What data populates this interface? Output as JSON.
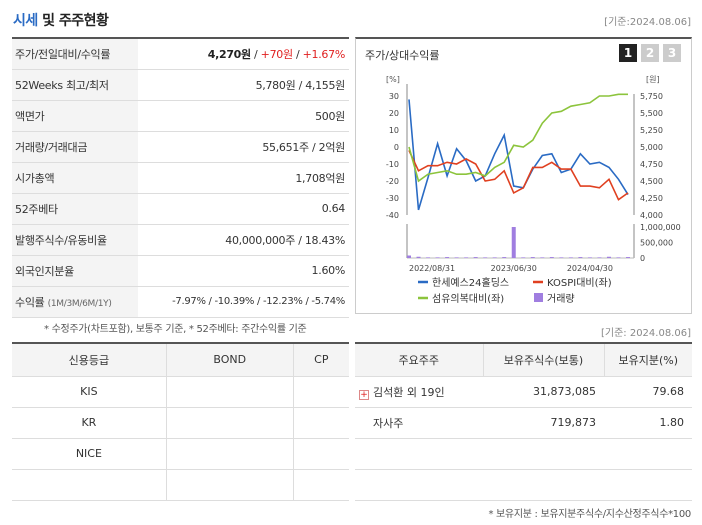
{
  "header": {
    "title_accent": "시세",
    "title_rest": " 및 주주현황",
    "date": "[기준:2024.08.06]"
  },
  "quote": {
    "rows": [
      {
        "label": "주가/전일대비/수익률",
        "price": "4,270원",
        "change": "+70원",
        "rate": "+1.67%"
      },
      {
        "label": "52Weeks 최고/최저",
        "value": "5,780원 / 4,155원"
      },
      {
        "label": "액면가",
        "value": "500원"
      },
      {
        "label": "거래량/거래대금",
        "value": "55,651주 / 2억원"
      },
      {
        "label": "시가총액",
        "value": "1,708억원"
      },
      {
        "label": "52주베타",
        "value": "0.64"
      },
      {
        "label": "발행주식수/유동비율",
        "value": "40,000,000주 / 18.43%"
      },
      {
        "label": "외국인지분율",
        "value": "1.60%"
      },
      {
        "label": "수익률",
        "sub": "(1M/3M/6M/1Y)",
        "value": "-7.97% / -10.39% / -12.23% / -5.74%"
      }
    ]
  },
  "chart_panel": {
    "title": "주가/상대수익률",
    "tabs": [
      "1",
      "2",
      "3"
    ],
    "active_tab": "1"
  },
  "chart_data": {
    "type": "line",
    "left_axis_unit": "[%]",
    "right_axis_unit": "[원]",
    "left_ticks": [
      "30",
      "20",
      "10",
      "0",
      "-10",
      "-20",
      "-30",
      "-40"
    ],
    "left_ylim": [
      -40,
      30
    ],
    "right_ticks": [
      "5,750",
      "5,500",
      "5,250",
      "5,000",
      "4,750",
      "4,500",
      "4,250",
      "4,000"
    ],
    "right_ylim": [
      4000,
      5750
    ],
    "volume_ticks": [
      "1,000,000",
      "500,000",
      "0"
    ],
    "x_labels": [
      "2022/08/31",
      "2023/06/30",
      "2024/04/30"
    ],
    "series": [
      {
        "name": "한세예스24홀딩스",
        "color": "#2a6bc4",
        "axis": "left",
        "values": [
          28,
          -37,
          -18,
          2,
          -17,
          -1,
          -8,
          -20,
          -17,
          -4,
          7,
          -23,
          -24,
          -13,
          -5,
          -4,
          -15,
          -13,
          -4,
          -10,
          -9,
          -12,
          -19,
          -28
        ]
      },
      {
        "name": "KOSPI대비(좌)",
        "color": "#e04020",
        "axis": "left",
        "values": [
          -2,
          -14,
          -11,
          -11,
          -9,
          -10,
          -7,
          -10,
          -20,
          -19,
          -14,
          -27,
          -24,
          -12,
          -12,
          -9,
          -13,
          -13,
          -23,
          -23,
          -24,
          -19,
          -31,
          -27
        ]
      },
      {
        "name": "섬유의복대비(좌)",
        "color": "#8cc43c",
        "axis": "left",
        "values": [
          0,
          -20,
          -16,
          -15,
          -14,
          -16,
          -16,
          -15,
          -17,
          -12,
          -9,
          1,
          0,
          4,
          14,
          20,
          21,
          24,
          25,
          26,
          30,
          30,
          31,
          31
        ]
      }
    ],
    "volume": {
      "name": "거래량",
      "color": "#a07ee0",
      "values": [
        0.08,
        0.04,
        0.02,
        0.02,
        0.03,
        0.02,
        0.02,
        0.03,
        0.02,
        0.02,
        0.03,
        1.0,
        0.02,
        0.03,
        0.02,
        0.03,
        0.02,
        0.02,
        0.03,
        0.02,
        0.02,
        0.04,
        0.02,
        0.03
      ]
    },
    "legend": [
      {
        "label": "한세예스24홀딩스",
        "color": "#2a6bc4",
        "kind": "line"
      },
      {
        "label": "KOSPI대비(좌)",
        "color": "#e04020",
        "kind": "line"
      },
      {
        "label": "섬유의복대비(좌)",
        "color": "#8cc43c",
        "kind": "line"
      },
      {
        "label": "거래량",
        "color": "#a07ee0",
        "kind": "box"
      }
    ]
  },
  "notes": {
    "quote_note": "* 수정주가(차트포함), 보통주 기준, * 52주베타: 주간수익률 기준",
    "date": "[기준: 2024.08.06]",
    "holder_note": "* 보유지분 : 보유지분주식수/지수산정주식수*100"
  },
  "credit": {
    "headers": [
      "신용등급",
      "BOND",
      "CP"
    ],
    "rows": [
      [
        "KIS",
        "",
        ""
      ],
      [
        "KR",
        "",
        ""
      ],
      [
        "NICE",
        "",
        ""
      ],
      [
        "",
        "",
        ""
      ]
    ]
  },
  "holders": {
    "headers": [
      "주요주주",
      "보유주식수(보통)",
      "보유지분(%)"
    ],
    "rows": [
      {
        "name": "김석환 외 19인",
        "shares": "31,873,085",
        "pct": "79.68",
        "expandable": true
      },
      {
        "name": "자사주",
        "shares": "719,873",
        "pct": "1.80",
        "expandable": false
      }
    ]
  }
}
